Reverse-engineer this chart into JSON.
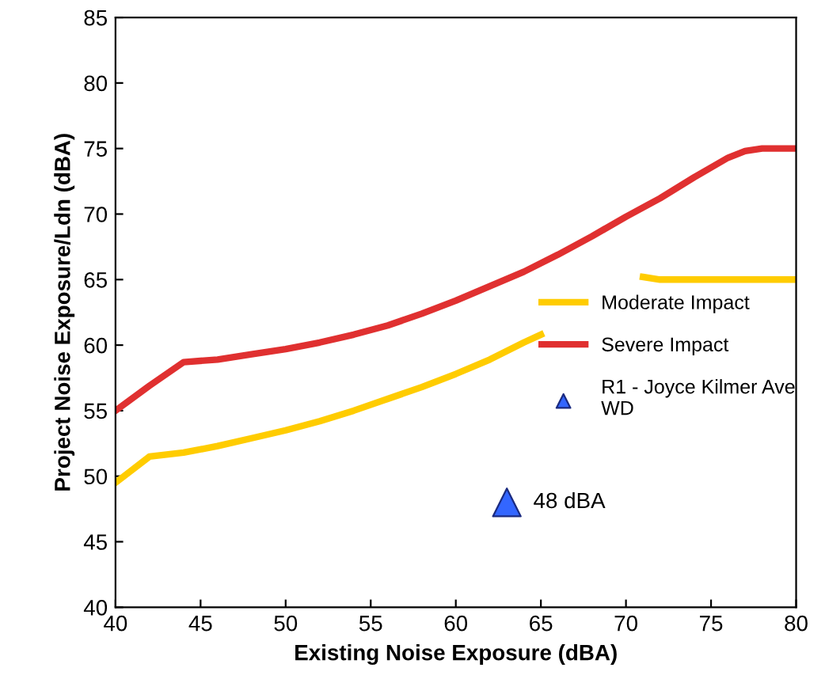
{
  "chart_data": {
    "type": "line",
    "xlabel": "Existing Noise Exposure (dBA)",
    "ylabel": "Project Noise Exposure/Ldn (dBA)",
    "xlim": [
      40,
      80
    ],
    "xticks": [
      40,
      45,
      50,
      55,
      60,
      65,
      70,
      75,
      80
    ],
    "ylim": [
      40,
      85
    ],
    "yticks": [
      40,
      45,
      50,
      55,
      60,
      65,
      70,
      75,
      80,
      85
    ],
    "grid": false,
    "legend": "right",
    "line_style": "solid",
    "marker": "none",
    "series": [
      {
        "name": "Moderate Impact",
        "color": "#ffcc00",
        "x": [
          40,
          42,
          44,
          46,
          48,
          50,
          52,
          54,
          56,
          58,
          60,
          62,
          64,
          65,
          68,
          71,
          72,
          80
        ],
        "values": [
          49.5,
          51.5,
          51.8,
          52.3,
          52.9,
          53.5,
          54.2,
          55,
          55.9,
          56.8,
          57.8,
          58.9,
          60.2,
          60.8,
          null,
          65.2,
          65,
          65
        ]
      },
      {
        "name": "Severe Impact",
        "color": "#e03030",
        "x": [
          40,
          42,
          44,
          46,
          48,
          50,
          52,
          54,
          56,
          58,
          60,
          62,
          64,
          66,
          68,
          70,
          72,
          74,
          76,
          77,
          78,
          80
        ],
        "values": [
          55,
          56.9,
          58.7,
          58.9,
          59.3,
          59.7,
          60.2,
          60.8,
          61.5,
          62.4,
          63.4,
          64.5,
          65.6,
          66.9,
          68.3,
          69.8,
          71.2,
          72.8,
          74.3,
          74.8,
          75,
          75
        ]
      },
      {
        "name": "R1 - Joyce Kilmer Ave\nWD",
        "type": "scatter",
        "marker": "triangle",
        "color": "#3366ff",
        "x": [
          63
        ],
        "values": [
          48
        ]
      }
    ],
    "annotations": [
      {
        "text": "48 dBA",
        "x": 63,
        "y": 48
      }
    ]
  }
}
